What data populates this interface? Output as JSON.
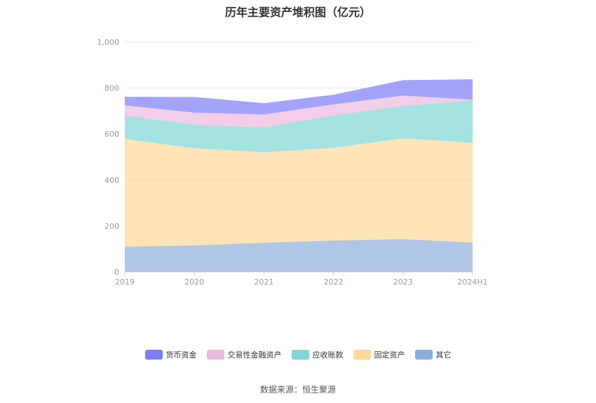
{
  "chart_data": {
    "type": "area",
    "stacked": true,
    "title": "历年主要资产堆积图（亿元）",
    "categories": [
      "2019",
      "2020",
      "2021",
      "2022",
      "2023",
      "2024H1"
    ],
    "y_ticks": [
      "0",
      "200",
      "400",
      "600",
      "800",
      "1,000"
    ],
    "ylim": [
      0,
      1000
    ],
    "grid": true,
    "legend_position": "bottom",
    "series": [
      {
        "name": "其它",
        "color": "#8eaedd",
        "values": [
          110,
          115,
          127,
          137,
          143,
          128
        ]
      },
      {
        "name": "固定资产",
        "color": "#ffd99a",
        "values": [
          468,
          423,
          393,
          403,
          438,
          434
        ]
      },
      {
        "name": "应收账款",
        "color": "#7fd6d6",
        "values": [
          103,
          102,
          109,
          141,
          141,
          186
        ]
      },
      {
        "name": "交易性金融资产",
        "color": "#ecb9de",
        "values": [
          44,
          53,
          56,
          48,
          45,
          1
        ]
      },
      {
        "name": "货币资金",
        "color": "#7b7cf6",
        "values": [
          37,
          68,
          49,
          42,
          67,
          89
        ]
      }
    ],
    "legend_order": [
      "货币资金",
      "交易性金融资产",
      "应收账款",
      "固定资产",
      "其它"
    ]
  },
  "source": "数据来源：恒生聚源"
}
